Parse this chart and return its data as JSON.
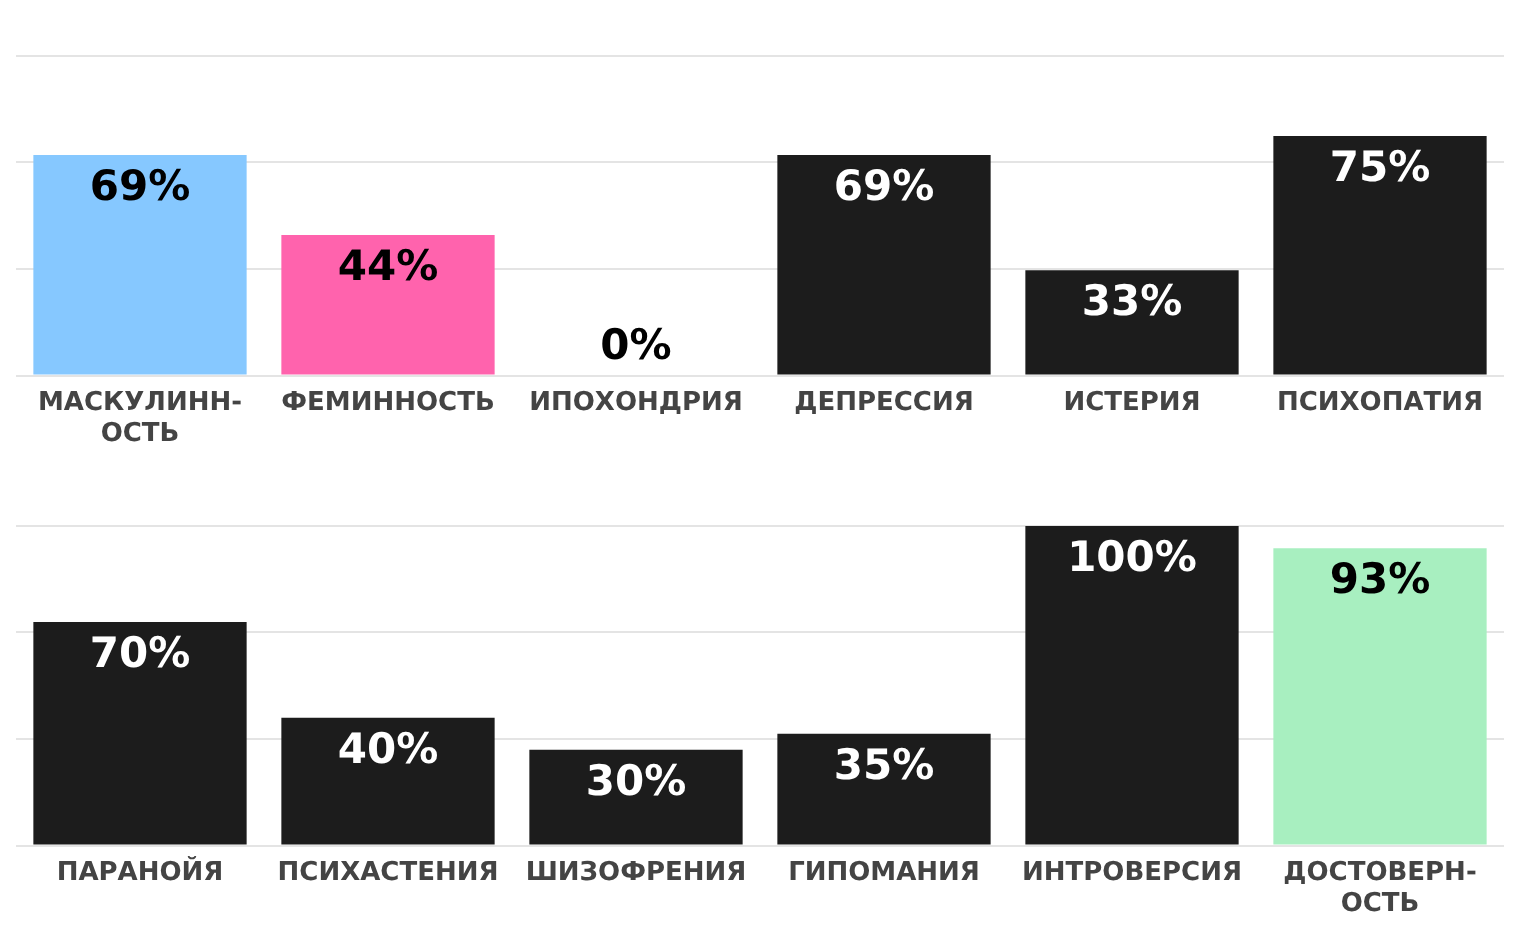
{
  "chart_data": [
    {
      "type": "bar",
      "categories": [
        "МАСКУЛИНН-ОСТЬ",
        "ФЕМИННОСТЬ",
        "ИПОХОНДРИЯ",
        "ДЕПРЕССИЯ",
        "ИСТЕРИЯ",
        "ПСИХОПАТИЯ"
      ],
      "values": [
        69,
        44,
        0,
        69,
        33,
        75
      ],
      "colors": [
        "#86c8ff",
        "#ff63ad",
        "#1c1c1c",
        "#1c1c1c",
        "#1c1c1c",
        "#1c1c1c"
      ],
      "value_labels": [
        "69%",
        "44%",
        "0%",
        "69%",
        "33%",
        "75%"
      ],
      "ylim": [
        0,
        100
      ],
      "yticks": [
        {
          "value": 0,
          "label": null
        },
        {
          "value": 33.3,
          "label": null
        },
        {
          "value": 66.7,
          "label": null
        },
        {
          "value": 100,
          "label": null
        }
      ],
      "grid": "y",
      "tick_labels": "x",
      "legend": false
    },
    {
      "type": "bar",
      "categories": [
        "ПАРАНОЙЯ",
        "ПСИХАСТЕНИЯ",
        "ШИЗОФРЕНИЯ",
        "ГИПОМАНИЯ",
        "ИНТРОВЕРСИЯ",
        "ДОСТОВЕРН-ОСТЬ"
      ],
      "values": [
        70,
        40,
        30,
        35,
        100,
        93
      ],
      "colors": [
        "#1c1c1c",
        "#1c1c1c",
        "#1c1c1c",
        "#1c1c1c",
        "#1c1c1c",
        "#a8efc0"
      ],
      "value_labels": [
        "70%",
        "40%",
        "30%",
        "35%",
        "100%",
        "93%"
      ],
      "ylim": [
        0,
        100
      ],
      "yticks": [
        {
          "value": 0,
          "label": null
        },
        {
          "value": 33.3,
          "label": null
        },
        {
          "value": 66.7,
          "label": null
        },
        {
          "value": 100,
          "label": null
        }
      ],
      "grid": "y",
      "tick_labels": "x",
      "legend": false
    }
  ]
}
